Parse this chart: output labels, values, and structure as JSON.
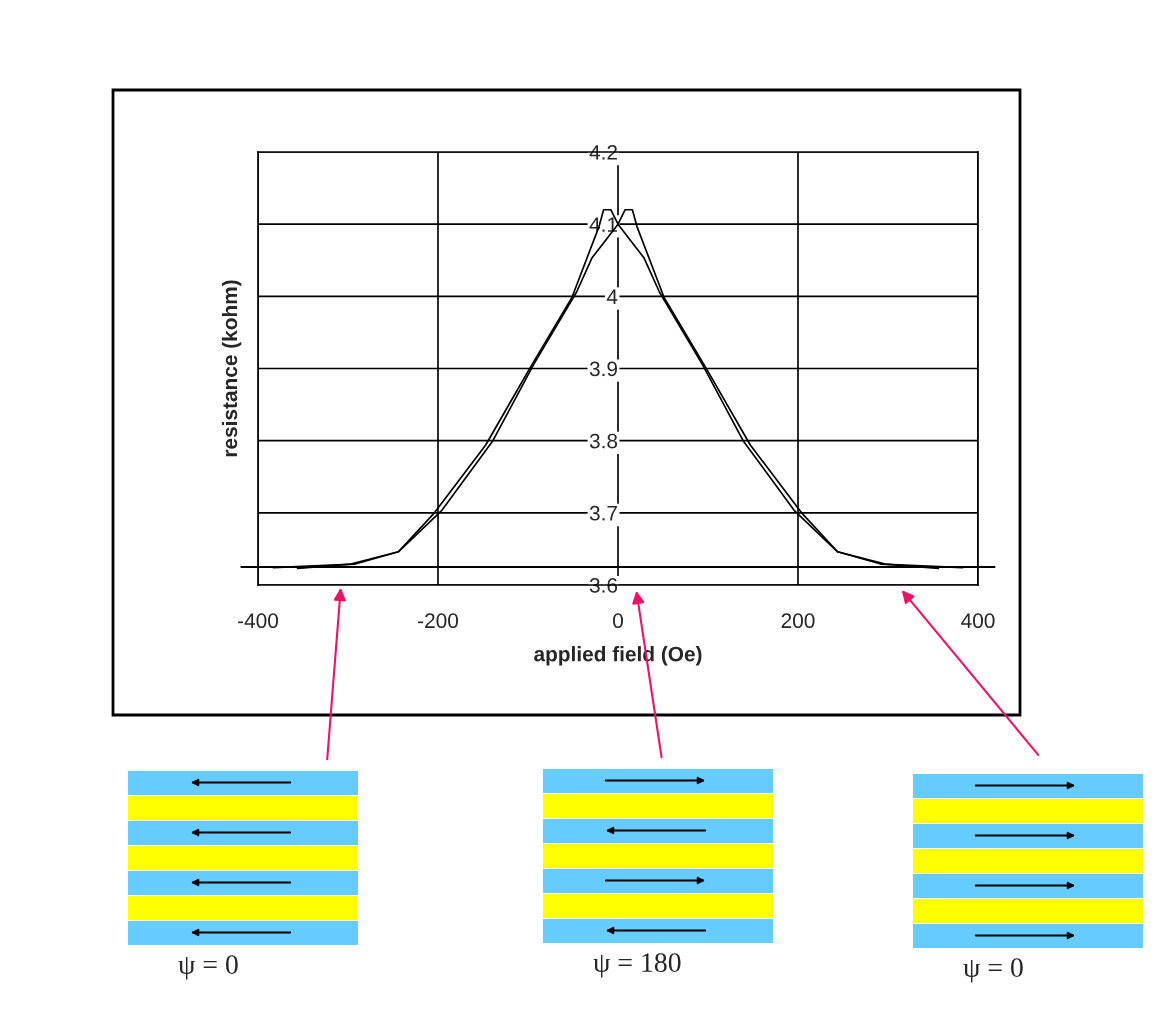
{
  "chart_data": {
    "type": "line",
    "xlabel": "applied field (Oe)",
    "ylabel": "resistance (kohm)",
    "series": [
      {
        "color": "#000000",
        "x": [
          -356,
          -297,
          -244,
          -204,
          -147,
          -99,
          -51,
          -21,
          -16,
          -8,
          0,
          29,
          46,
          94,
          139,
          196,
          244,
          292,
          383
        ],
        "values": [
          3.623,
          3.629,
          3.646,
          3.7,
          3.794,
          3.898,
          3.999,
          4.097,
          4.12,
          4.12,
          4.1,
          4.053,
          4.006,
          3.905,
          3.8,
          3.703,
          3.646,
          3.629,
          3.624
        ]
      },
      {
        "color": "#000000",
        "x": [
          -383,
          -292,
          -244,
          -196,
          -139,
          -94,
          -46,
          -29,
          0,
          8,
          16,
          21,
          51,
          99,
          147,
          204,
          244,
          297,
          356
        ],
        "values": [
          3.624,
          3.629,
          3.646,
          3.703,
          3.8,
          3.905,
          4.006,
          4.053,
          4.1,
          4.12,
          4.12,
          4.097,
          3.999,
          3.898,
          3.794,
          3.7,
          3.646,
          3.629,
          3.623
        ]
      }
    ],
    "xlim": [
      -400,
      400
    ],
    "ylim": [
      3.6,
      4.2
    ],
    "xticks": [
      -400,
      -200,
      0,
      200,
      400
    ],
    "yticks": [
      3.6,
      3.7,
      3.8,
      3.9,
      4,
      4.1,
      4.2
    ],
    "grid": true,
    "marker": "none",
    "line_style": "solid",
    "ref_lines": [
      {
        "axis": "y",
        "value": 3.625,
        "color": "#000000"
      }
    ],
    "annotations": [
      "ψ = 0",
      "ψ = 180",
      "ψ = 0"
    ]
  }
}
